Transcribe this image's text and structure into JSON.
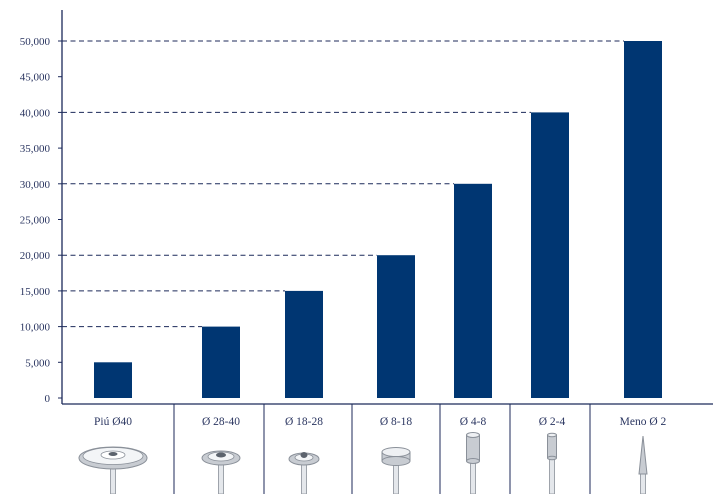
{
  "chart_data": {
    "type": "bar",
    "categories": [
      "Piú Ø40",
      "Ø 28-40",
      "Ø 18-28",
      "Ø 8-18",
      "Ø 4-8",
      "Ø 2-4",
      "Meno Ø 2"
    ],
    "values": [
      5000,
      10000,
      15000,
      20000,
      30000,
      40000,
      50000
    ],
    "yticks": [
      "0",
      "5,000",
      "10,000",
      "15,000",
      "20,000",
      "25,000",
      "30,000",
      "35,000",
      "40,000",
      "45,000",
      "50,000"
    ],
    "ylim": [
      0,
      50000
    ],
    "grid": "dashed lines at bar tops",
    "legend": "none",
    "category_icons": [
      "large-disc-tool-icon",
      "medium-disc-tool-icon",
      "small-disc-tool-icon",
      "disc-grinder-tool-icon",
      "cylinder-grinder-tool-icon",
      "narrow-cylinder-tool-icon",
      "pointed-cone-tool-icon"
    ]
  },
  "colors": {
    "bar": "#003672",
    "axis": "#1c2a5a",
    "grid": "#1c2a5a",
    "tool_metal": "#c8ccd2"
  }
}
